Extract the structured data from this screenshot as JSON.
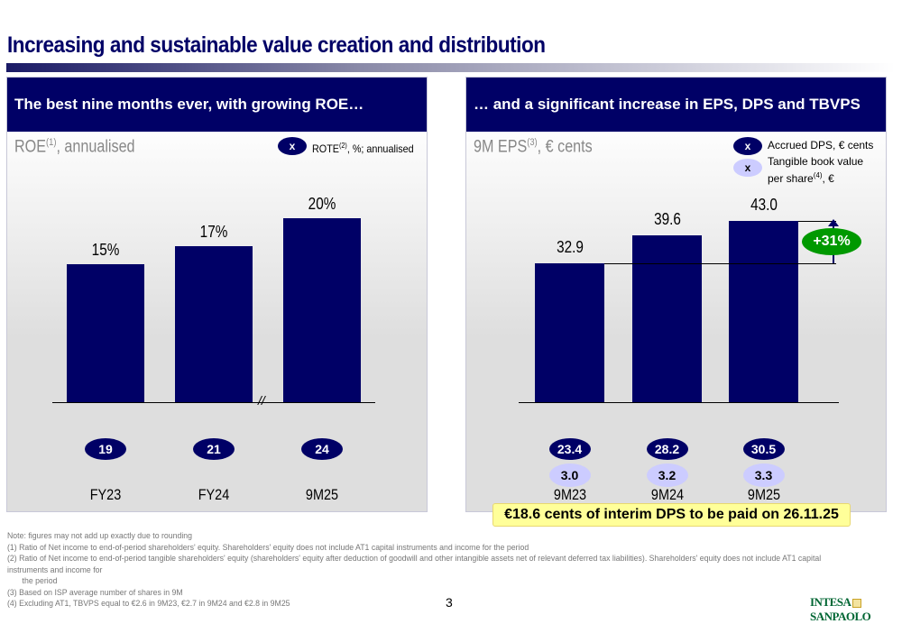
{
  "title": "Increasing and sustainable value creation and distribution",
  "colors": {
    "navy": "#000066",
    "light_oval": "#ccccff",
    "green": "#009900",
    "highlight": "#ffff99"
  },
  "chart_data": [
    {
      "type": "bar",
      "header": "The best nine months ever, with growing ROE…",
      "title_main": "ROE",
      "title_sup": "(1)",
      "title_rest": ", annualised",
      "legend": {
        "symbol": "x",
        "label_main": "ROTE",
        "label_sup": "(2)",
        "label_rest": ", %; annualised"
      },
      "categories": [
        "FY23",
        "FY24",
        "9M25"
      ],
      "values": [
        15,
        17,
        20
      ],
      "value_labels": [
        "15%",
        "17%",
        "20%"
      ],
      "rote": [
        "19",
        "21",
        "24"
      ],
      "axis_break": "between FY24 and 9M25"
    },
    {
      "type": "bar",
      "header": "… and a significant increase in EPS, DPS and TBVPS",
      "title_main": "9M EPS",
      "title_sup": "(3)",
      "title_rest": ", € cents",
      "legend": [
        {
          "symbol": "x",
          "label": "Accrued DPS, € cents"
        },
        {
          "symbol": "x",
          "label_line1": "Tangible book value",
          "label_line2": "per share",
          "label_sup": "(4)",
          "label_rest": ", €"
        }
      ],
      "categories": [
        "9M23",
        "9M24",
        "9M25"
      ],
      "values": [
        32.9,
        39.6,
        43.0
      ],
      "value_labels": [
        "32.9",
        "39.6",
        "43.0"
      ],
      "dps": [
        "23.4",
        "28.2",
        "30.5"
      ],
      "tbvps": [
        "3.0",
        "3.2",
        "3.3"
      ],
      "growth_label": "+31%",
      "callout": "€18.6 cents of interim DPS to be paid on 26.11.25"
    }
  ],
  "notes": [
    "Note: figures may not add up exactly due to rounding",
    "(1)  Ratio of Net income to end-of-period shareholders' equity. Shareholders' equity does not include AT1 capital instruments and income for the period",
    "(2)  Ratio of Net income to end-of-period tangible shareholders' equity (shareholders' equity after deduction of goodwill and other intangible assets net of relevant deferred tax liabilities). Shareholders' equity does not include AT1 capital instruments and income for",
    "      the period",
    "(3)  Based on ISP average number of shares in 9M",
    "(4)  Excluding AT1, TBVPS equal to €2.6 in 9M23, €2.7 in 9M24 and €2.8 in 9M25"
  ],
  "page_number": "3",
  "logo": "INTESA SANPAOLO"
}
